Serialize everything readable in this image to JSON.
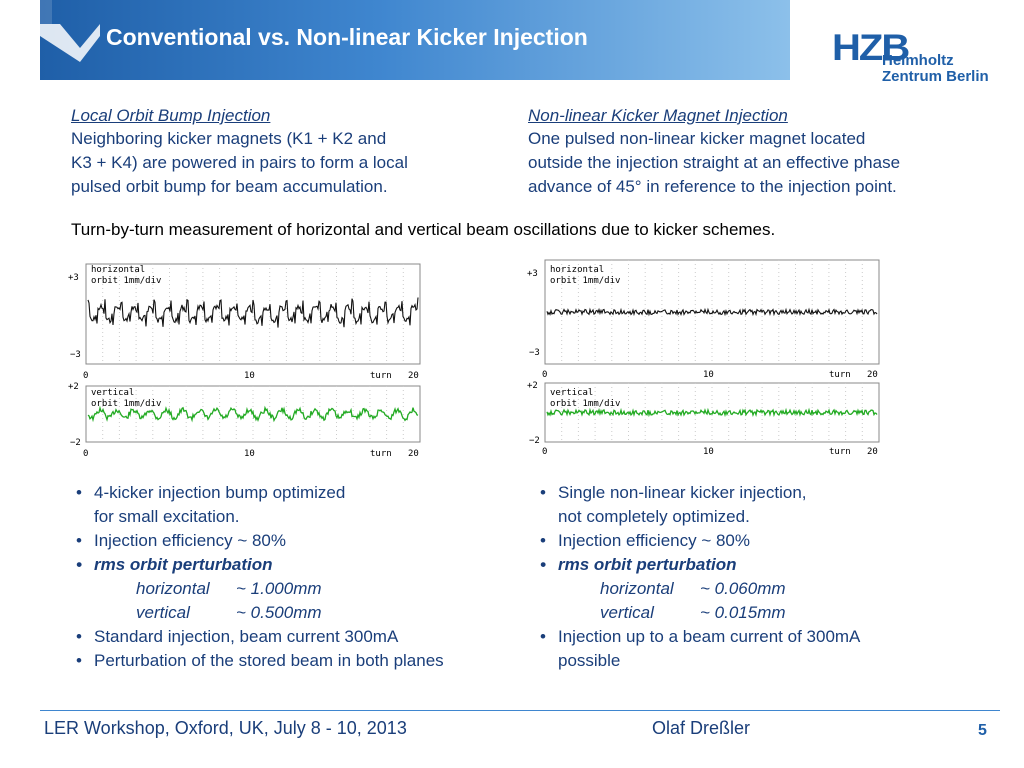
{
  "header": {
    "title": "Conventional vs. Non-linear Kicker Injection",
    "logo": {
      "mark": "HZB",
      "line1": "Helmholtz",
      "line2": "Zentrum Berlin"
    },
    "accent": "#1f5fa8"
  },
  "left": {
    "heading": "Local Orbit Bump Injection",
    "body": [
      "Neighboring kicker magnets (K1 + K2 and",
      "K3 + K4) are powered in pairs to form a local",
      "pulsed orbit bump for beam accumulation."
    ]
  },
  "right": {
    "heading": "Non-linear Kicker Magnet Injection",
    "body": [
      "One pulsed non-linear kicker magnet located",
      "outside the injection straight at an effective phase",
      "advance of 45° in reference to the injection point."
    ]
  },
  "sentence": "Turn-by-turn measurement of horizontal and vertical beam oscillations due to kicker schemes.",
  "plots": {
    "left": {
      "top": {
        "label1": "horizontal",
        "label2": "orbit 1mm/div",
        "ymax": "+3",
        "ymin": "−3",
        "x0": "0",
        "x1": "10",
        "xl": "turn",
        "x2": "20"
      },
      "bottom": {
        "label1": "vertical",
        "label2": "orbit 1mm/div",
        "ymax": "+2",
        "ymin": "−2",
        "x0": "0",
        "x1": "10",
        "xl": "turn",
        "x2": "20"
      }
    },
    "right": {
      "top": {
        "label1": "horizontal",
        "label2": "orbit 1mm/div",
        "ymax": "+3",
        "ymin": "−3",
        "x0": "0",
        "x1": "10",
        "xl": "turn",
        "x2": "20"
      },
      "bottom": {
        "label1": "vertical",
        "label2": "orbit 1mm/div",
        "ymax": "+2",
        "ymin": "−2",
        "x0": "0",
        "x1": "10",
        "xl": "turn",
        "x2": "20"
      }
    },
    "colors": {
      "horizontal": "#111111",
      "vertical": "#22aa22"
    }
  },
  "bullets_left": {
    "b1a": "4-kicker injection bump optimized",
    "b1b": "for small excitation.",
    "b2": "Injection efficiency ~ 80%",
    "b3": "rms orbit perturbation",
    "h_label": "horizontal",
    "h_val": "~ 1.000mm",
    "v_label": "vertical",
    "v_val": "~ 0.500mm",
    "b4": "Standard injection, beam current 300mA",
    "b5": "Perturbation of the stored beam in both planes"
  },
  "bullets_right": {
    "b1a": "Single non-linear kicker injection,",
    "b1b": "not completely optimized.",
    "b2": "Injection efficiency ~ 80%",
    "b3": "rms orbit perturbation",
    "h_label": "horizontal",
    "h_val": "~ 0.060mm",
    "v_label": "vertical",
    "v_val": "~ 0.015mm",
    "b4a": "Injection up to a beam current of 300mA",
    "b4b": "possible"
  },
  "footer": {
    "event": "LER Workshop, Oxford, UK, July 8 - 10, 2013",
    "author": "Olaf Dreßler",
    "page": "5"
  }
}
